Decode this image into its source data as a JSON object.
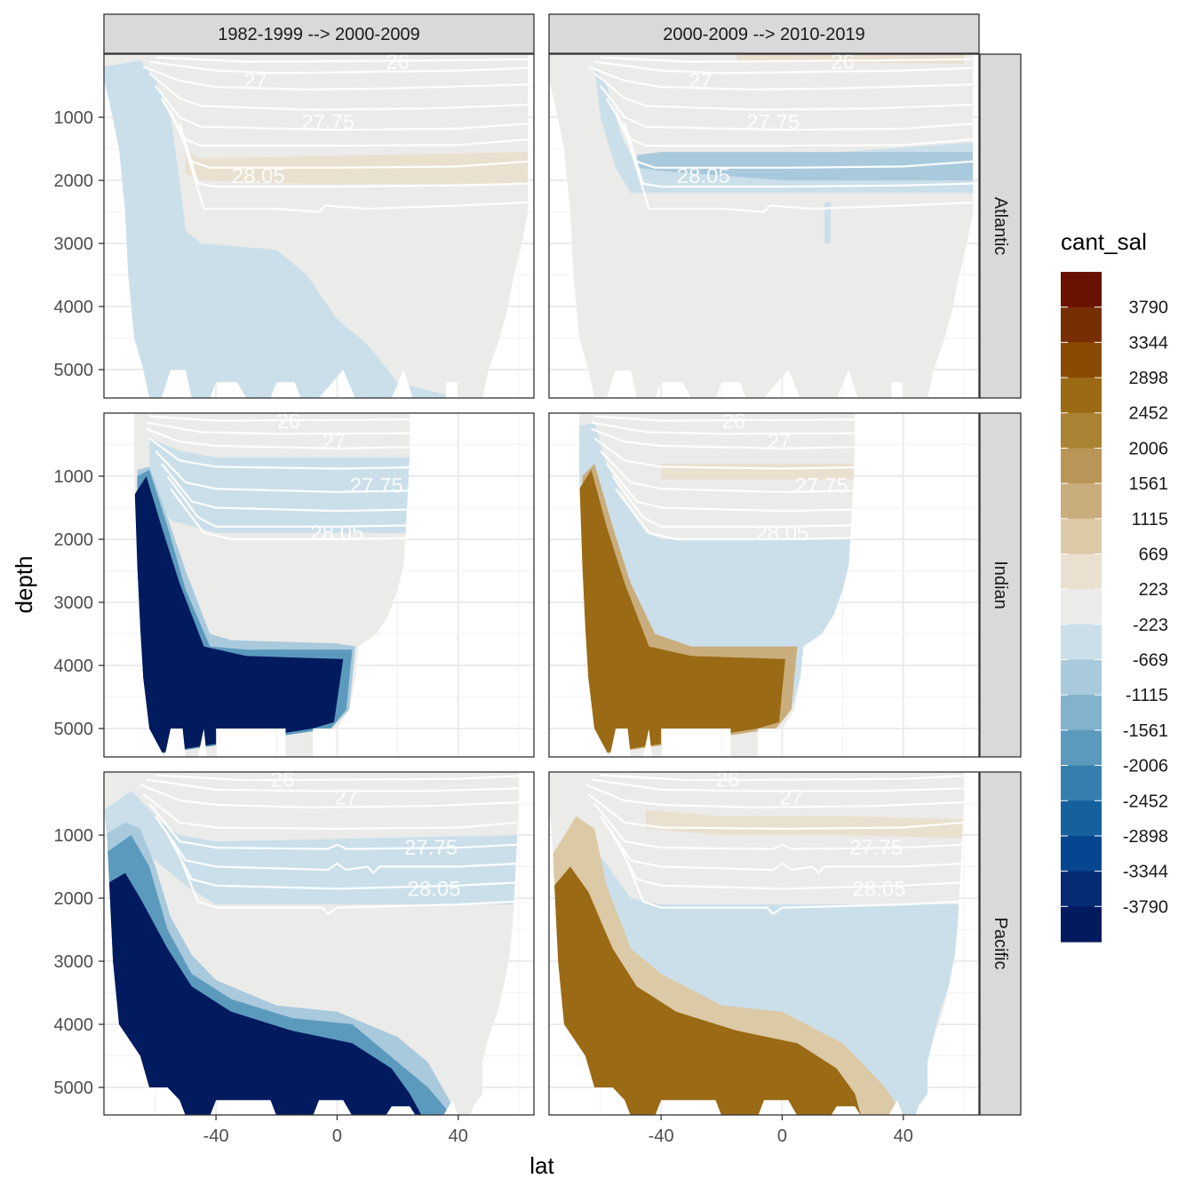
{
  "chart_data": {
    "type": "heatmap",
    "xlabel": "lat",
    "ylabel": "depth",
    "xlim": [
      -77,
      65
    ],
    "ylim": [
      5450,
      0
    ],
    "x_ticks": [
      -40,
      0,
      40
    ],
    "y_ticks": [
      1000,
      2000,
      3000,
      4000,
      5000
    ],
    "columns": [
      "1982-1999 --> 2000-2009",
      "2000-2009 --> 2010-2019"
    ],
    "rows": [
      "Atlantic",
      "Indian",
      "Pacific"
    ],
    "fill_variable": "cant_sal",
    "legend": {
      "title": "cant_sal",
      "position": "right",
      "breaks": [
        3790,
        3344,
        2898,
        2452,
        2006,
        1561,
        1115,
        669,
        223,
        -223,
        -669,
        -1115,
        -1561,
        -2006,
        -2452,
        -2898,
        -3344,
        -3790
      ],
      "colors": [
        "#6a1202",
        "#772e02",
        "#8a4a03",
        "#9a6a14",
        "#a98234",
        "#b99658",
        "#c9ad7d",
        "#dcc9a5",
        "#e9e0d0",
        "#ebebe9",
        "#cadfea",
        "#a9c9dc",
        "#82b2cc",
        "#5b9abd",
        "#357fae",
        "#14619e",
        "#064690",
        "#052b74",
        "#021a5e"
      ]
    },
    "isopycnal_labels": [
      "26",
      "27",
      "27.75",
      "28.05"
    ],
    "panels": [
      {
        "row": "Atlantic",
        "column": "1982-1999 --> 2000-2009",
        "dominant_anomaly": "weak negative (-223 to -669) south of 30S; weak positive band near 28.05 isopycnal"
      },
      {
        "row": "Atlantic",
        "column": "2000-2009 --> 2010-2019",
        "dominant_anomaly": "negative band (-669 to -1115) along 28.05 isopycnal; weak positive near surface"
      },
      {
        "row": "Indian",
        "column": "1982-1999 --> 2000-2009",
        "dominant_anomaly": "strong negative (< -3790) in southern deep water"
      },
      {
        "row": "Indian",
        "column": "2000-2009 --> 2010-2019",
        "dominant_anomaly": "strong positive (2006 to 2452) in southern deep water"
      },
      {
        "row": "Pacific",
        "column": "1982-1999 --> 2000-2009",
        "dominant_anomaly": "strong negative (< -3790) in southern and bottom water"
      },
      {
        "row": "Pacific",
        "column": "2000-2009 --> 2010-2019",
        "dominant_anomaly": "strong positive (2006 to 2452) in southern and bottom water"
      }
    ]
  }
}
